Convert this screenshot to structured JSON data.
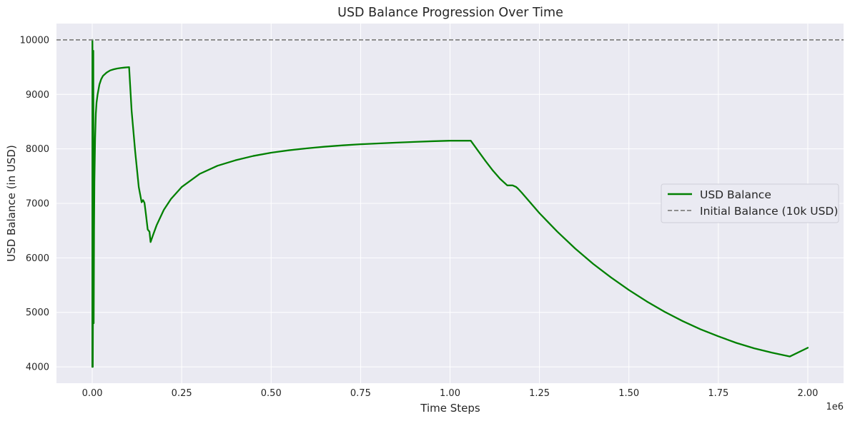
{
  "chart_data": {
    "type": "line",
    "title": "USD Balance Progression Over Time",
    "xlabel": "Time Steps",
    "ylabel": "USD Balance (in USD)",
    "x_offset_label": "1e6",
    "xlim": [
      -0.1,
      2.1
    ],
    "ylim": [
      3700,
      10300
    ],
    "x_ticks": [
      0.0,
      0.25,
      0.5,
      0.75,
      1.0,
      1.25,
      1.5,
      1.75,
      2.0
    ],
    "x_tick_labels": [
      "0.00",
      "0.25",
      "0.50",
      "0.75",
      "1.00",
      "1.25",
      "1.50",
      "1.75",
      "2.00"
    ],
    "y_ticks": [
      4000,
      5000,
      6000,
      7000,
      8000,
      9000,
      10000
    ],
    "y_tick_labels": [
      "4000",
      "5000",
      "6000",
      "7000",
      "8000",
      "9000",
      "10000"
    ],
    "grid": true,
    "legend_position": "center-right",
    "background_color": "#eaeaf2",
    "series": [
      {
        "name": "USD Balance",
        "color": "#008000",
        "style": "solid",
        "x": [
          0.0,
          0.0002,
          0.0004,
          0.0006,
          0.0008,
          0.001,
          0.0015,
          0.002,
          0.0025,
          0.003,
          0.0035,
          0.004,
          0.005,
          0.006,
          0.008,
          0.01,
          0.012,
          0.015,
          0.02,
          0.025,
          0.03,
          0.04,
          0.05,
          0.06,
          0.07,
          0.08,
          0.09,
          0.103,
          0.11,
          0.12,
          0.13,
          0.138,
          0.142,
          0.146,
          0.15,
          0.155,
          0.16,
          0.163,
          0.17,
          0.18,
          0.2,
          0.22,
          0.25,
          0.3,
          0.35,
          0.4,
          0.45,
          0.5,
          0.55,
          0.6,
          0.65,
          0.7,
          0.75,
          0.8,
          0.85,
          0.9,
          0.95,
          1.0,
          1.058,
          1.08,
          1.1,
          1.12,
          1.14,
          1.16,
          1.175,
          1.185,
          1.19,
          1.2,
          1.25,
          1.3,
          1.35,
          1.4,
          1.45,
          1.5,
          1.55,
          1.6,
          1.65,
          1.7,
          1.75,
          1.8,
          1.85,
          1.9,
          1.95,
          2.0
        ],
        "y": [
          4000,
          4000,
          10000,
          9900,
          7500,
          4000,
          4000,
          5000,
          7000,
          9800,
          6500,
          4800,
          6500,
          7400,
          8200,
          8650,
          8850,
          9000,
          9180,
          9280,
          9340,
          9400,
          9440,
          9460,
          9475,
          9485,
          9492,
          9500,
          8700,
          7950,
          7300,
          7020,
          7060,
          7010,
          6800,
          6520,
          6480,
          6290,
          6420,
          6600,
          6880,
          7080,
          7300,
          7540,
          7690,
          7790,
          7870,
          7930,
          7975,
          8010,
          8040,
          8065,
          8085,
          8100,
          8115,
          8128,
          8140,
          8150,
          8150,
          7950,
          7770,
          7600,
          7450,
          7330,
          7330,
          7300,
          7270,
          7200,
          6820,
          6480,
          6170,
          5890,
          5640,
          5410,
          5200,
          5010,
          4840,
          4690,
          4560,
          4440,
          4340,
          4260,
          4190,
          4350
        ]
      },
      {
        "name": "Initial Balance (10k USD)",
        "color": "#808080",
        "style": "dashed",
        "y_constant": 10000
      }
    ]
  }
}
